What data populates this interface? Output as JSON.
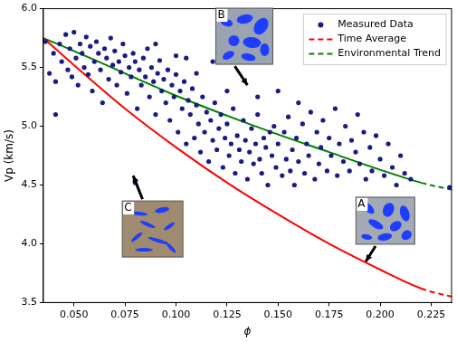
{
  "chart_data": {
    "type": "scatter",
    "x_label": "ϕ",
    "y_label": "Vp (km/s)",
    "xlim": [
      0.035,
      0.235
    ],
    "xticks": [
      {
        "value": 0.05,
        "label": "0.050"
      },
      {
        "value": 0.075,
        "label": "0.075"
      },
      {
        "value": 0.1,
        "label": "0.100"
      },
      {
        "value": 0.125,
        "label": "0.125"
      },
      {
        "value": 0.15,
        "label": "0.150"
      },
      {
        "value": 0.175,
        "label": "0.175"
      },
      {
        "value": 0.2,
        "label": "0.200"
      },
      {
        "value": 0.225,
        "label": "0.225"
      }
    ],
    "ylim": [
      3.5,
      6.0
    ],
    "yticks": [
      3.5,
      {
        "value": 4,
        "label": "4.0"
      },
      4.5,
      {
        "value": 5,
        "label": "5.0"
      },
      5.5,
      {
        "value": 6,
        "label": "6.0"
      }
    ],
    "grid": false,
    "legend": "upper right",
    "series": [
      {
        "name": "Measured Data",
        "type": "scatter",
        "color": "#1c1c80",
        "marker": "circle",
        "x": [
          0.036,
          0.038,
          0.04,
          0.041,
          0.043,
          0.044,
          0.046,
          0.047,
          0.048,
          0.049,
          0.05,
          0.051,
          0.052,
          0.053,
          0.054,
          0.055,
          0.056,
          0.057,
          0.058,
          0.059,
          0.06,
          0.061,
          0.062,
          0.063,
          0.064,
          0.065,
          0.066,
          0.067,
          0.068,
          0.069,
          0.07,
          0.071,
          0.072,
          0.073,
          0.074,
          0.075,
          0.076,
          0.077,
          0.078,
          0.079,
          0.08,
          0.081,
          0.082,
          0.083,
          0.084,
          0.085,
          0.086,
          0.087,
          0.088,
          0.089,
          0.09,
          0.091,
          0.092,
          0.093,
          0.094,
          0.095,
          0.096,
          0.097,
          0.098,
          0.099,
          0.1,
          0.101,
          0.102,
          0.103,
          0.104,
          0.105,
          0.106,
          0.107,
          0.108,
          0.109,
          0.11,
          0.111,
          0.112,
          0.113,
          0.114,
          0.115,
          0.116,
          0.117,
          0.118,
          0.119,
          0.12,
          0.121,
          0.122,
          0.123,
          0.124,
          0.125,
          0.126,
          0.127,
          0.128,
          0.129,
          0.13,
          0.131,
          0.132,
          0.133,
          0.134,
          0.135,
          0.136,
          0.137,
          0.138,
          0.139,
          0.14,
          0.141,
          0.142,
          0.143,
          0.144,
          0.145,
          0.146,
          0.147,
          0.148,
          0.149,
          0.15,
          0.152,
          0.153,
          0.154,
          0.155,
          0.156,
          0.157,
          0.158,
          0.159,
          0.16,
          0.162,
          0.163,
          0.164,
          0.165,
          0.166,
          0.168,
          0.169,
          0.17,
          0.171,
          0.172,
          0.174,
          0.175,
          0.176,
          0.178,
          0.179,
          0.18,
          0.182,
          0.183,
          0.185,
          0.186,
          0.188,
          0.189,
          0.19,
          0.192,
          0.193,
          0.195,
          0.196,
          0.198,
          0.2,
          0.202,
          0.204,
          0.206,
          0.208,
          0.21,
          0.212,
          0.215,
          0.234,
          0.08,
          0.041,
          0.125,
          0.1,
          0.09,
          0.11,
          0.14,
          0.15,
          0.118,
          0.16,
          0.105
        ],
        "values": [
          5.72,
          5.45,
          5.62,
          5.38,
          5.7,
          5.55,
          5.78,
          5.48,
          5.66,
          5.42,
          5.8,
          5.58,
          5.35,
          5.7,
          5.62,
          5.5,
          5.76,
          5.44,
          5.68,
          5.3,
          5.55,
          5.72,
          5.62,
          5.48,
          5.2,
          5.66,
          5.58,
          5.4,
          5.75,
          5.52,
          5.64,
          5.35,
          5.55,
          5.46,
          5.7,
          5.6,
          5.28,
          5.5,
          5.42,
          5.62,
          5.55,
          5.15,
          5.48,
          5.35,
          5.58,
          5.42,
          5.66,
          5.25,
          5.5,
          5.38,
          5.1,
          5.45,
          5.56,
          5.3,
          5.4,
          5.2,
          5.48,
          5.05,
          5.35,
          5.25,
          5.44,
          4.95,
          5.3,
          5.15,
          5.38,
          4.85,
          5.22,
          5.1,
          5.32,
          4.9,
          5.18,
          5.02,
          4.78,
          5.25,
          4.95,
          5.12,
          4.7,
          5.05,
          4.88,
          5.2,
          4.8,
          4.98,
          5.1,
          4.65,
          4.9,
          5.02,
          4.75,
          4.85,
          5.15,
          4.6,
          4.92,
          4.8,
          4.7,
          5.05,
          4.88,
          4.55,
          4.78,
          4.98,
          4.68,
          4.85,
          5.1,
          4.72,
          4.6,
          4.9,
          4.82,
          4.5,
          4.95,
          4.75,
          5.0,
          4.65,
          4.85,
          4.58,
          4.95,
          4.72,
          5.08,
          4.62,
          4.8,
          4.5,
          4.9,
          4.7,
          5.02,
          4.6,
          4.85,
          4.75,
          5.12,
          4.55,
          4.95,
          4.68,
          4.82,
          5.05,
          4.62,
          4.9,
          4.75,
          5.15,
          4.58,
          4.85,
          4.7,
          5.0,
          4.62,
          4.88,
          4.78,
          5.1,
          4.68,
          4.95,
          4.55,
          4.82,
          4.62,
          4.92,
          4.72,
          4.58,
          4.85,
          4.65,
          4.5,
          4.75,
          4.6,
          4.55,
          4.48,
          4.52,
          5.1,
          5.3,
          5.6,
          5.7,
          5.45,
          5.25,
          5.3,
          5.55,
          5.2,
          5.58
        ]
      },
      {
        "name": "Time Average",
        "type": "line",
        "color": "#ff0000",
        "line_style": "solid",
        "extrapolated_from": 0.22,
        "x": [
          0.035,
          0.05,
          0.075,
          0.1,
          0.125,
          0.15,
          0.175,
          0.2,
          0.22,
          0.235
        ],
        "values": [
          5.75,
          5.52,
          5.15,
          4.82,
          4.52,
          4.25,
          4.0,
          3.78,
          3.62,
          3.55
        ]
      },
      {
        "name": "Environmental Trend",
        "type": "line",
        "color": "#008000",
        "line_style": "solid",
        "extrapolated_from": 0.22,
        "x": [
          0.035,
          0.05,
          0.075,
          0.1,
          0.125,
          0.15,
          0.175,
          0.2,
          0.22,
          0.235
        ],
        "values": [
          5.75,
          5.64,
          5.45,
          5.26,
          5.09,
          4.93,
          4.78,
          4.63,
          4.52,
          4.46
        ]
      }
    ],
    "annotations": [
      {
        "text": "B",
        "x": 0.135,
        "y": 5.35
      },
      {
        "text": "A",
        "x": 0.193,
        "y": 3.85
      },
      {
        "text": "C",
        "x": 0.079,
        "y": 4.58
      }
    ]
  }
}
